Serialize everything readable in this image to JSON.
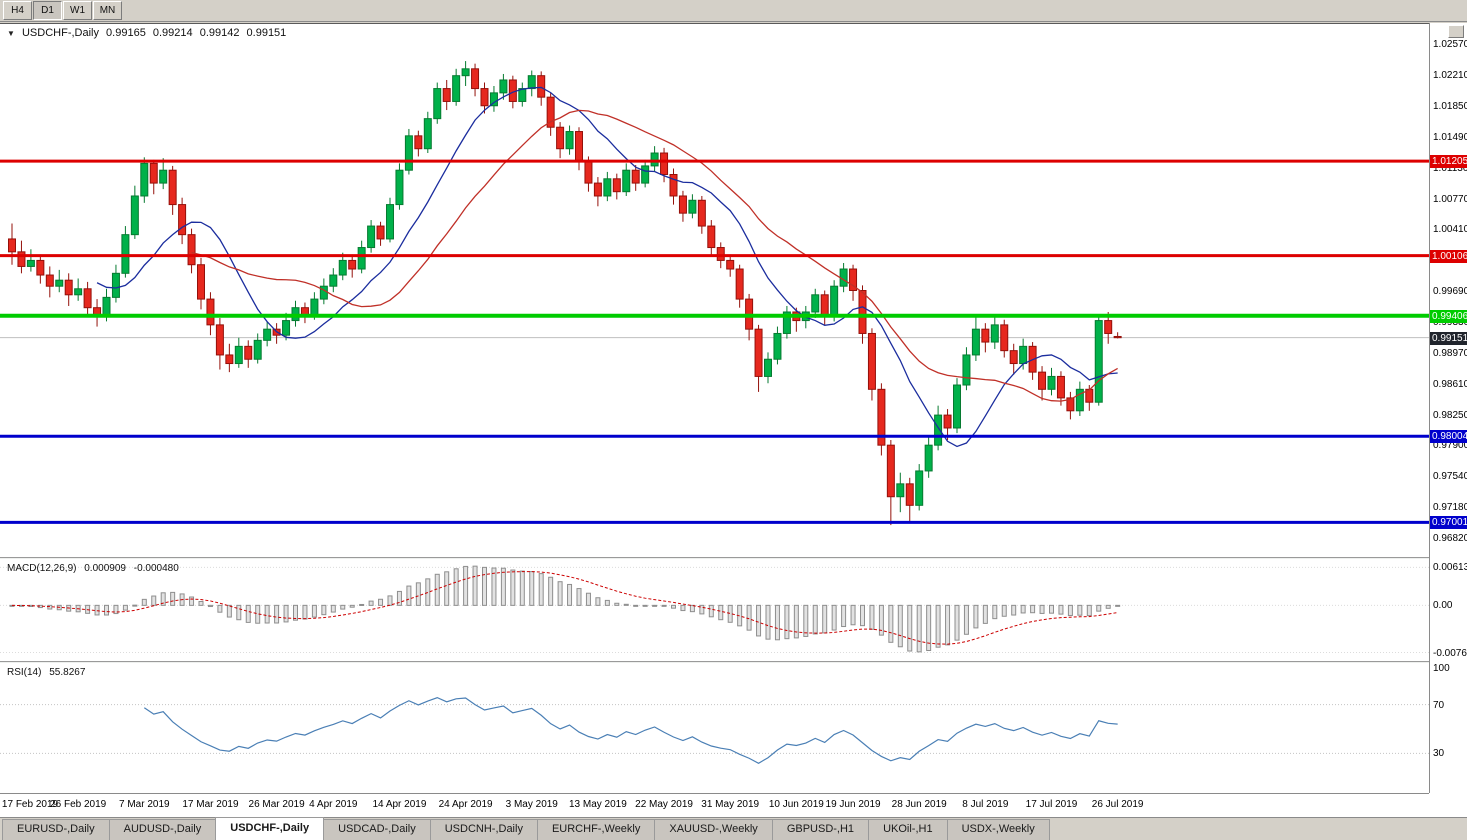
{
  "toolbar": {
    "periods": [
      {
        "label": "H4",
        "active": false
      },
      {
        "label": "D1",
        "active": true
      },
      {
        "label": "W1",
        "active": false
      },
      {
        "label": "MN",
        "active": false
      }
    ]
  },
  "chart_header": {
    "symbol": "USDCHF-,Daily",
    "open": "0.99165",
    "high": "0.99214",
    "low": "0.99142",
    "close": "0.99151"
  },
  "chart_data": {
    "type": "candlestick",
    "title": "USDCHF-,Daily",
    "price_axis": {
      "ticks": [
        "1.02570",
        "1.02210",
        "1.01850",
        "1.01490",
        "1.01130",
        "1.00770",
        "1.00410",
        "1.00050",
        "0.99690",
        "0.99330",
        "0.98970",
        "0.98610",
        "0.98250",
        "0.97900",
        "0.97540",
        "0.97180",
        "0.96820"
      ],
      "view_max": 1.0272,
      "view_min": 0.9668
    },
    "time_axis": {
      "labels": [
        "17 Feb 2019",
        "26 Feb 2019",
        "7 Mar 2019",
        "17 Mar 2019",
        "26 Mar 2019",
        "4 Apr 2019",
        "14 Apr 2019",
        "24 Apr 2019",
        "3 May 2019",
        "13 May 2019",
        "22 May 2019",
        "31 May 2019",
        "10 Jun 2019",
        "19 Jun 2019",
        "28 Jun 2019",
        "8 Jul 2019",
        "17 Jul 2019",
        "26 Jul 2019"
      ],
      "candle_index_of_label": [
        0,
        7,
        14,
        21,
        28,
        34,
        41,
        48,
        55,
        62,
        69,
        76,
        83,
        89,
        96,
        103,
        110,
        117
      ]
    },
    "candles": [
      [
        1.003,
        1.0048,
        1.0,
        1.0015
      ],
      [
        1.0015,
        1.0028,
        0.999,
        0.9998
      ],
      [
        0.9998,
        1.0018,
        0.9992,
        1.0005
      ],
      [
        1.0005,
        1.0012,
        0.9978,
        0.9988
      ],
      [
        0.9988,
        0.9998,
        0.9962,
        0.9975
      ],
      [
        0.9975,
        0.9994,
        0.9968,
        0.9982
      ],
      [
        0.9982,
        0.999,
        0.9952,
        0.9965
      ],
      [
        0.9965,
        0.9984,
        0.9958,
        0.9972
      ],
      [
        0.9972,
        0.998,
        0.9942,
        0.995
      ],
      [
        0.995,
        0.996,
        0.9928,
        0.994
      ],
      [
        0.994,
        0.9972,
        0.9934,
        0.9962
      ],
      [
        0.9962,
        1.0,
        0.9956,
        0.999
      ],
      [
        0.999,
        1.0045,
        0.9985,
        1.0035
      ],
      [
        1.0035,
        1.0092,
        1.003,
        1.008
      ],
      [
        1.008,
        1.0125,
        1.0072,
        1.0118
      ],
      [
        1.0118,
        1.0122,
        1.0082,
        1.0095
      ],
      [
        1.0095,
        1.0124,
        1.0088,
        1.011
      ],
      [
        1.011,
        1.0115,
        1.0058,
        1.007
      ],
      [
        1.007,
        1.0078,
        1.0024,
        1.0035
      ],
      [
        1.0035,
        1.0042,
        0.999,
        1.0
      ],
      [
        1.0,
        1.0008,
        0.9948,
        0.996
      ],
      [
        0.996,
        0.9968,
        0.9918,
        0.993
      ],
      [
        0.993,
        0.9938,
        0.9878,
        0.9895
      ],
      [
        0.9895,
        0.9908,
        0.9875,
        0.9885
      ],
      [
        0.9885,
        0.9915,
        0.988,
        0.9905
      ],
      [
        0.9905,
        0.9912,
        0.988,
        0.989
      ],
      [
        0.989,
        0.992,
        0.9885,
        0.9912
      ],
      [
        0.9912,
        0.9934,
        0.9905,
        0.9925
      ],
      [
        0.9925,
        0.9932,
        0.9908,
        0.9918
      ],
      [
        0.9918,
        0.9944,
        0.9912,
        0.9935
      ],
      [
        0.9935,
        0.9958,
        0.9928,
        0.995
      ],
      [
        0.995,
        0.9956,
        0.9932,
        0.9942
      ],
      [
        0.9942,
        0.9968,
        0.9936,
        0.996
      ],
      [
        0.996,
        0.9984,
        0.9954,
        0.9975
      ],
      [
        0.9975,
        0.9996,
        0.9968,
        0.9988
      ],
      [
        0.9988,
        1.0014,
        0.9982,
        1.0005
      ],
      [
        1.0005,
        1.0012,
        0.9985,
        0.9995
      ],
      [
        0.9995,
        1.0028,
        0.999,
        1.002
      ],
      [
        1.002,
        1.0052,
        1.0014,
        1.0045
      ],
      [
        1.0045,
        1.005,
        1.0022,
        1.003
      ],
      [
        1.003,
        1.0078,
        1.0026,
        1.007
      ],
      [
        1.007,
        1.0118,
        1.0064,
        1.011
      ],
      [
        1.011,
        1.0158,
        1.0105,
        1.015
      ],
      [
        1.015,
        1.0156,
        1.0126,
        1.0135
      ],
      [
        1.0135,
        1.0178,
        1.013,
        1.017
      ],
      [
        1.017,
        1.0212,
        1.0164,
        1.0205
      ],
      [
        1.0205,
        1.0215,
        1.018,
        1.019
      ],
      [
        1.019,
        1.0228,
        1.0185,
        1.022
      ],
      [
        1.022,
        1.0237,
        1.0208,
        1.0228
      ],
      [
        1.0228,
        1.0234,
        1.0196,
        1.0205
      ],
      [
        1.0205,
        1.0212,
        1.0176,
        1.0185
      ],
      [
        1.0185,
        1.0208,
        1.0178,
        1.02
      ],
      [
        1.02,
        1.0222,
        1.0192,
        1.0215
      ],
      [
        1.0215,
        1.022,
        1.0182,
        1.019
      ],
      [
        1.019,
        1.0212,
        1.0184,
        1.0205
      ],
      [
        1.0205,
        1.0226,
        1.0196,
        1.022
      ],
      [
        1.022,
        1.0225,
        1.0185,
        1.0195
      ],
      [
        1.0195,
        1.02,
        1.015,
        1.016
      ],
      [
        1.016,
        1.0166,
        1.0124,
        1.0135
      ],
      [
        1.0135,
        1.0162,
        1.0128,
        1.0155
      ],
      [
        1.0155,
        1.016,
        1.011,
        1.012
      ],
      [
        1.012,
        1.0126,
        1.0085,
        1.0095
      ],
      [
        1.0095,
        1.0102,
        1.0068,
        1.008
      ],
      [
        1.008,
        1.0108,
        1.0074,
        1.01
      ],
      [
        1.01,
        1.0106,
        1.0076,
        1.0085
      ],
      [
        1.0085,
        1.0118,
        1.008,
        1.011
      ],
      [
        1.011,
        1.0116,
        1.0086,
        1.0095
      ],
      [
        1.0095,
        1.0122,
        1.009,
        1.0115
      ],
      [
        1.0115,
        1.0138,
        1.0108,
        1.013
      ],
      [
        1.013,
        1.0136,
        1.0096,
        1.0105
      ],
      [
        1.0105,
        1.0112,
        1.007,
        1.008
      ],
      [
        1.008,
        1.0086,
        1.005,
        1.006
      ],
      [
        1.006,
        1.0082,
        1.0054,
        1.0075
      ],
      [
        1.0075,
        1.008,
        1.0036,
        1.0045
      ],
      [
        1.0045,
        1.0052,
        1.001,
        1.002
      ],
      [
        1.002,
        1.0026,
        0.9996,
        1.0005
      ],
      [
        1.0005,
        1.0012,
        0.9986,
        0.9995
      ],
      [
        0.9995,
        1.0,
        0.995,
        0.996
      ],
      [
        0.996,
        0.9966,
        0.9912,
        0.9925
      ],
      [
        0.9925,
        0.993,
        0.9852,
        0.987
      ],
      [
        0.987,
        0.9898,
        0.9862,
        0.989
      ],
      [
        0.989,
        0.9928,
        0.9884,
        0.992
      ],
      [
        0.992,
        0.9952,
        0.9914,
        0.9945
      ],
      [
        0.9945,
        0.995,
        0.9922,
        0.9935
      ],
      [
        0.9935,
        0.9952,
        0.9926,
        0.9945
      ],
      [
        0.9945,
        0.9972,
        0.9938,
        0.9965
      ],
      [
        0.9965,
        0.997,
        0.993,
        0.994
      ],
      [
        0.994,
        0.9982,
        0.9934,
        0.9975
      ],
      [
        0.9975,
        1.0002,
        0.9968,
        0.9995
      ],
      [
        0.9995,
        1.0,
        0.9958,
        0.997
      ],
      [
        0.997,
        0.9976,
        0.9908,
        0.992
      ],
      [
        0.992,
        0.9926,
        0.9842,
        0.9855
      ],
      [
        0.9855,
        0.9862,
        0.9778,
        0.979
      ],
      [
        0.979,
        0.9796,
        0.9697,
        0.973
      ],
      [
        0.973,
        0.9758,
        0.9712,
        0.9745
      ],
      [
        0.9745,
        0.9752,
        0.97,
        0.972
      ],
      [
        0.972,
        0.9768,
        0.9714,
        0.976
      ],
      [
        0.976,
        0.98,
        0.9752,
        0.979
      ],
      [
        0.979,
        0.9836,
        0.9784,
        0.9825
      ],
      [
        0.9825,
        0.9832,
        0.9796,
        0.981
      ],
      [
        0.981,
        0.9868,
        0.9804,
        0.986
      ],
      [
        0.986,
        0.9904,
        0.9854,
        0.9895
      ],
      [
        0.9895,
        0.9941,
        0.9888,
        0.9925
      ],
      [
        0.9925,
        0.9932,
        0.9898,
        0.991
      ],
      [
        0.991,
        0.994,
        0.9902,
        0.993
      ],
      [
        0.993,
        0.9936,
        0.9892,
        0.99
      ],
      [
        0.99,
        0.9908,
        0.9872,
        0.9885
      ],
      [
        0.9885,
        0.9914,
        0.9878,
        0.9905
      ],
      [
        0.9905,
        0.991,
        0.9866,
        0.9875
      ],
      [
        0.9875,
        0.9882,
        0.9842,
        0.9855
      ],
      [
        0.9855,
        0.988,
        0.9848,
        0.987
      ],
      [
        0.987,
        0.9876,
        0.9836,
        0.9845
      ],
      [
        0.9845,
        0.9852,
        0.982,
        0.983
      ],
      [
        0.983,
        0.9864,
        0.9824,
        0.9855
      ],
      [
        0.9855,
        0.986,
        0.983,
        0.984
      ],
      [
        0.984,
        0.994,
        0.9836,
        0.9935
      ],
      [
        0.9935,
        0.9945,
        0.9908,
        0.992
      ],
      [
        0.99165,
        0.99214,
        0.99142,
        0.99151
      ]
    ],
    "candle_colors": {
      "bull": "#00b14a",
      "bull_border": "#067a30",
      "bear": "#e6281e",
      "bear_border": "#94100a"
    },
    "moving_averages": [
      {
        "type": "sma",
        "period": 10,
        "color": "#1b2d9e"
      },
      {
        "type": "sma",
        "period": 20,
        "color": "#c03028"
      }
    ],
    "hlines": [
      {
        "price": 1.01205,
        "label": "1.01205",
        "color": "#dd0000",
        "width": 3
      },
      {
        "price": 1.00106,
        "label": "1.00106",
        "color": "#dd0000",
        "width": 3
      },
      {
        "price": 0.99406,
        "label": "0.99406",
        "color": "#00cc00",
        "width": 4
      },
      {
        "price": 0.98004,
        "label": "0.98004",
        "color": "#0000cc",
        "width": 3
      },
      {
        "price": 0.97001,
        "label": "0.97001",
        "color": "#0000cc",
        "width": 3
      }
    ],
    "current_price": {
      "value": 0.99151,
      "label": "0.99151",
      "badge_color": "#20242c",
      "line_color": "#bfbfbf"
    },
    "macd": {
      "name": "MACD(12,26,9)",
      "value_main": "0.000909",
      "value_signal": "-0.000480",
      "fast": 12,
      "slow": 26,
      "signal_period": 9,
      "axis_ticks": [
        "0.00613",
        "0.00",
        "-0.00762"
      ],
      "view_max": 0.007,
      "view_min": -0.0085,
      "histogram_fill": "#e2e2e2",
      "histogram_border": "#8e8e8e",
      "signal_color": "#cc0000"
    },
    "rsi": {
      "name": "RSI(14)",
      "value": "55.8267",
      "period": 14,
      "axis_ticks": [
        "100",
        "70",
        "30"
      ],
      "levels": [
        70,
        30
      ],
      "line_color": "#4a7fb5",
      "level_color": "#c4c4c4"
    }
  },
  "bottom_tabs": {
    "items": [
      {
        "label": "EURUSD-,Daily",
        "active": false
      },
      {
        "label": "AUDUSD-,Daily",
        "active": false
      },
      {
        "label": "USDCHF-,Daily",
        "active": true
      },
      {
        "label": "USDCAD-,Daily",
        "active": false
      },
      {
        "label": "USDCNH-,Daily",
        "active": false
      },
      {
        "label": "EURCHF-,Weekly",
        "active": false
      },
      {
        "label": "XAUUSD-,Weekly",
        "active": false
      },
      {
        "label": "GBPUSD-,H1",
        "active": false
      },
      {
        "label": "UKOil-,H1",
        "active": false
      },
      {
        "label": "USDX-,Weekly",
        "active": false
      }
    ]
  }
}
